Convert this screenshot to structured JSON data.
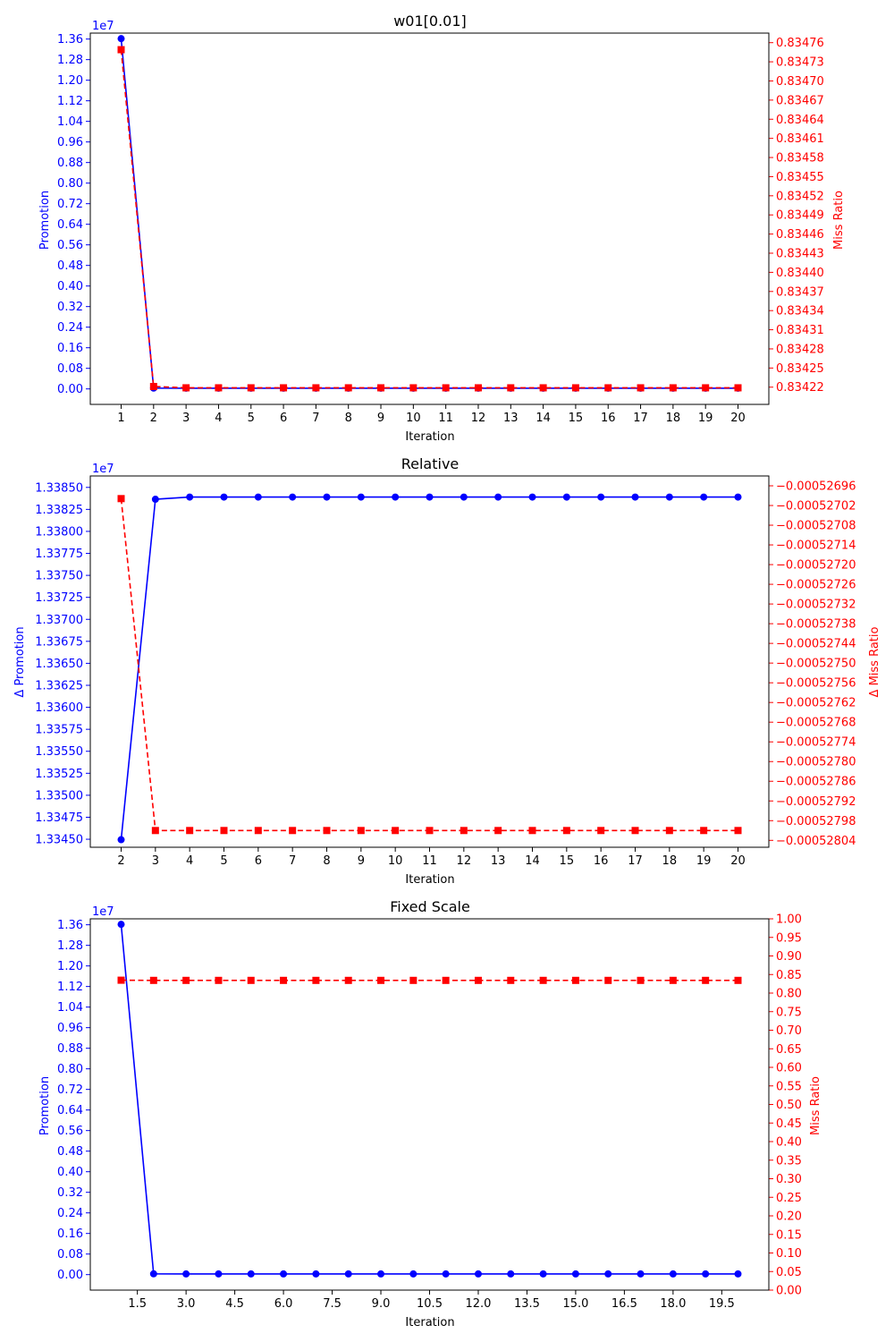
{
  "chart_data": [
    {
      "type": "line",
      "title": "w01[0.01]",
      "xlabel": "Iteration",
      "ylabel_left": "Promotion",
      "ylabel_right": "Miss Ratio",
      "left_offset_text": "1e7",
      "left_color": "#0000ff",
      "right_color": "#ff0000",
      "xlim": [
        0.05,
        20.95
      ],
      "x_ticks": [
        1,
        2,
        3,
        4,
        5,
        6,
        7,
        8,
        9,
        10,
        11,
        12,
        13,
        14,
        15,
        16,
        17,
        18,
        19,
        20
      ],
      "x_tick_labels": [
        "1",
        "2",
        "3",
        "4",
        "5",
        "6",
        "7",
        "8",
        "9",
        "10",
        "11",
        "12",
        "13",
        "14",
        "15",
        "16",
        "17",
        "18",
        "19",
        "20"
      ],
      "left_ylim": [
        -0.0602,
        1.3831
      ],
      "left_ticks": [
        0,
        0.08,
        0.16,
        0.24,
        0.32,
        0.4,
        0.48,
        0.56,
        0.64,
        0.72,
        0.8,
        0.88,
        0.96,
        1.04,
        1.12,
        1.2,
        1.28,
        1.36
      ],
      "left_tick_labels": [
        "0.00",
        "0.08",
        "0.16",
        "0.24",
        "0.32",
        "0.40",
        "0.48",
        "0.56",
        "0.64",
        "0.72",
        "0.80",
        "0.88",
        "0.96",
        "1.04",
        "1.12",
        "1.20",
        "1.28",
        "1.36"
      ],
      "right_ylim": [
        0.834193,
        0.834775
      ],
      "right_ticks": [
        0.83422,
        0.83425,
        0.83428,
        0.83431,
        0.83434,
        0.83437,
        0.8344,
        0.83443,
        0.83446,
        0.83449,
        0.83452,
        0.83455,
        0.83458,
        0.83461,
        0.83464,
        0.83467,
        0.8347,
        0.83473,
        0.83476
      ],
      "right_tick_labels": [
        "0.83422",
        "0.83425",
        "0.83428",
        "0.83431",
        "0.83434",
        "0.83437",
        "0.83440",
        "0.83443",
        "0.83446",
        "0.83449",
        "0.83452",
        "0.83455",
        "0.83458",
        "0.83461",
        "0.83464",
        "0.83467",
        "0.83470",
        "0.83473",
        "0.83476"
      ],
      "series": [
        {
          "name": "Promotion",
          "axis": "left",
          "style": "solid",
          "marker": "circle",
          "x": [
            1,
            2,
            3,
            4,
            5,
            6,
            7,
            8,
            9,
            10,
            11,
            12,
            13,
            14,
            15,
            16,
            17,
            18,
            19,
            20
          ],
          "values": [
            1.3616,
            0.0032,
            0.0027,
            0.0027,
            0.0027,
            0.0027,
            0.0027,
            0.0027,
            0.0027,
            0.0027,
            0.0027,
            0.0027,
            0.0027,
            0.0027,
            0.0027,
            0.0027,
            0.0027,
            0.0027,
            0.0027,
            0.0027
          ]
        },
        {
          "name": "Miss Ratio",
          "axis": "right",
          "style": "dashed",
          "marker": "square",
          "x": [
            1,
            2,
            3,
            4,
            5,
            6,
            7,
            8,
            9,
            10,
            11,
            12,
            13,
            14,
            15,
            16,
            17,
            18,
            19,
            20
          ],
          "values": [
            0.834749,
            0.834221,
            0.834219,
            0.834219,
            0.834219,
            0.834219,
            0.834219,
            0.834219,
            0.834219,
            0.834219,
            0.834219,
            0.834219,
            0.834219,
            0.834219,
            0.834219,
            0.834219,
            0.834219,
            0.834219,
            0.834219,
            0.834219
          ]
        }
      ]
    },
    {
      "type": "line",
      "title": "Relative",
      "xlabel": "Iteration",
      "ylabel_left": "Δ Promotion",
      "ylabel_right": "Δ Miss Ratio",
      "left_offset_text": "1e7",
      "left_color": "#0000ff",
      "right_color": "#ff0000",
      "xlim": [
        1.1,
        20.9
      ],
      "x_ticks": [
        2,
        3,
        4,
        5,
        6,
        7,
        8,
        9,
        10,
        11,
        12,
        13,
        14,
        15,
        16,
        17,
        18,
        19,
        20
      ],
      "x_tick_labels": [
        "2",
        "3",
        "4",
        "5",
        "6",
        "7",
        "8",
        "9",
        "10",
        "11",
        "12",
        "13",
        "14",
        "15",
        "16",
        "17",
        "18",
        "19",
        "20"
      ],
      "left_ylim": [
        1.334409,
        1.33863
      ],
      "left_ticks": [
        1.3345,
        1.33475,
        1.335,
        1.33525,
        1.3355,
        1.33575,
        1.336,
        1.33625,
        1.3365,
        1.33675,
        1.337,
        1.33725,
        1.3375,
        1.33775,
        1.338,
        1.33825,
        1.3385
      ],
      "left_tick_labels": [
        "1.33450",
        "1.33475",
        "1.33500",
        "1.33525",
        "1.33550",
        "1.33575",
        "1.33600",
        "1.33625",
        "1.33650",
        "1.33675",
        "1.33700",
        "1.33725",
        "1.33750",
        "1.33775",
        "1.33800",
        "1.33825",
        "1.33850"
      ],
      "right_ylim": [
        -0.000528061,
        -0.00052693
      ],
      "right_ticks": [
        -0.00052804,
        -0.00052798,
        -0.00052792,
        -0.00052786,
        -0.0005278,
        -0.00052774,
        -0.00052768,
        -0.00052762,
        -0.00052756,
        -0.0005275,
        -0.00052744,
        -0.00052738,
        -0.00052732,
        -0.00052726,
        -0.0005272,
        -0.00052714,
        -0.00052708,
        -0.00052702,
        -0.00052696
      ],
      "right_tick_labels": [
        "−0.00052804",
        "−0.00052798",
        "−0.00052792",
        "−0.00052786",
        "−0.00052780",
        "−0.00052774",
        "−0.00052768",
        "−0.00052762",
        "−0.00052756",
        "−0.00052750",
        "−0.00052744",
        "−0.00052738",
        "−0.00052732",
        "−0.00052726",
        "−0.00052720",
        "−0.00052714",
        "−0.00052708",
        "−0.00052702",
        "−0.00052696"
      ],
      "series": [
        {
          "name": "Δ Promotion",
          "axis": "left",
          "style": "solid",
          "marker": "circle",
          "x": [
            2,
            3,
            4,
            5,
            6,
            7,
            8,
            9,
            10,
            11,
            12,
            13,
            14,
            15,
            16,
            17,
            18,
            19,
            20
          ],
          "values": [
            1.334495,
            1.338365,
            1.33839,
            1.33839,
            1.33839,
            1.33839,
            1.33839,
            1.33839,
            1.33839,
            1.33839,
            1.33839,
            1.33839,
            1.33839,
            1.33839,
            1.33839,
            1.33839,
            1.33839,
            1.33839,
            1.33839
          ]
        },
        {
          "name": "Δ Miss Ratio",
          "axis": "right",
          "style": "dashed",
          "marker": "square",
          "x": [
            2,
            3,
            4,
            5,
            6,
            7,
            8,
            9,
            10,
            11,
            12,
            13,
            14,
            15,
            16,
            17,
            18,
            19,
            20
          ],
          "values": [
            -0.000526999,
            -0.00052801,
            -0.00052801,
            -0.00052801,
            -0.00052801,
            -0.00052801,
            -0.00052801,
            -0.00052801,
            -0.00052801,
            -0.00052801,
            -0.00052801,
            -0.00052801,
            -0.00052801,
            -0.00052801,
            -0.00052801,
            -0.00052801,
            -0.00052801,
            -0.00052801,
            -0.00052801
          ]
        }
      ]
    },
    {
      "type": "line",
      "title": "Fixed Scale",
      "xlabel": "Iteration",
      "ylabel_left": "Promotion",
      "ylabel_right": "Miss Ratio",
      "left_offset_text": "1e7",
      "left_color": "#0000ff",
      "right_color": "#ff0000",
      "xlim": [
        0.05,
        20.95
      ],
      "x_ticks": [
        1.5,
        3.0,
        4.5,
        6.0,
        7.5,
        9.0,
        10.5,
        12.0,
        13.5,
        15.0,
        16.5,
        18.0,
        19.5
      ],
      "x_tick_labels": [
        "1.5",
        "3.0",
        "4.5",
        "6.0",
        "7.5",
        "9.0",
        "10.5",
        "12.0",
        "13.5",
        "15.0",
        "16.5",
        "18.0",
        "19.5"
      ],
      "left_ylim": [
        -0.0602,
        1.3831
      ],
      "left_ticks": [
        0,
        0.08,
        0.16,
        0.24,
        0.32,
        0.4,
        0.48,
        0.56,
        0.64,
        0.72,
        0.8,
        0.88,
        0.96,
        1.04,
        1.12,
        1.2,
        1.28,
        1.36
      ],
      "left_tick_labels": [
        "0.00",
        "0.08",
        "0.16",
        "0.24",
        "0.32",
        "0.40",
        "0.48",
        "0.56",
        "0.64",
        "0.72",
        "0.80",
        "0.88",
        "0.96",
        "1.04",
        "1.12",
        "1.20",
        "1.28",
        "1.36"
      ],
      "right_ylim": [
        0,
        1
      ],
      "right_ticks": [
        0,
        0.05,
        0.1,
        0.15,
        0.2,
        0.25,
        0.3,
        0.35,
        0.4,
        0.45,
        0.5,
        0.55,
        0.6,
        0.65,
        0.7,
        0.75,
        0.8,
        0.85,
        0.9,
        0.95,
        1.0
      ],
      "right_tick_labels": [
        "0.00",
        "0.05",
        "0.10",
        "0.15",
        "0.20",
        "0.25",
        "0.30",
        "0.35",
        "0.40",
        "0.45",
        "0.50",
        "0.55",
        "0.60",
        "0.65",
        "0.70",
        "0.75",
        "0.80",
        "0.85",
        "0.90",
        "0.95",
        "1.00"
      ],
      "series": [
        {
          "name": "Promotion",
          "axis": "left",
          "style": "solid",
          "marker": "circle",
          "x": [
            1,
            2,
            3,
            4,
            5,
            6,
            7,
            8,
            9,
            10,
            11,
            12,
            13,
            14,
            15,
            16,
            17,
            18,
            19,
            20
          ],
          "values": [
            1.3616,
            0.0032,
            0.0027,
            0.0027,
            0.0027,
            0.0027,
            0.0027,
            0.0027,
            0.0027,
            0.0027,
            0.0027,
            0.0027,
            0.0027,
            0.0027,
            0.0027,
            0.0027,
            0.0027,
            0.0027,
            0.0027,
            0.0027
          ]
        },
        {
          "name": "Miss Ratio",
          "axis": "right",
          "style": "dashed",
          "marker": "square",
          "x": [
            1,
            2,
            3,
            4,
            5,
            6,
            7,
            8,
            9,
            10,
            11,
            12,
            13,
            14,
            15,
            16,
            17,
            18,
            19,
            20
          ],
          "values": [
            0.8347,
            0.8342,
            0.8342,
            0.8342,
            0.8342,
            0.8342,
            0.8342,
            0.8342,
            0.8342,
            0.8342,
            0.8342,
            0.8342,
            0.8342,
            0.8342,
            0.8342,
            0.8342,
            0.8342,
            0.8342,
            0.8342,
            0.8342
          ]
        }
      ]
    }
  ]
}
